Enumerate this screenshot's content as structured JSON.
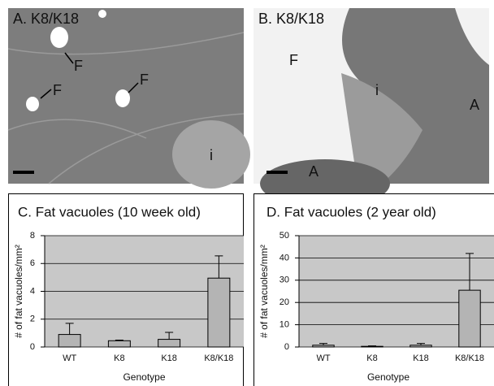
{
  "panels": [
    {
      "title": "A. K8/K18",
      "labels": [
        "F",
        "F",
        "F",
        "i"
      ]
    },
    {
      "title": "B. K8/K18",
      "labels": [
        "F",
        "i",
        "A",
        "A"
      ]
    }
  ],
  "chart_data": [
    {
      "type": "bar",
      "title": "C. Fat vacuoles (10 week old)",
      "xlabel": "Genotype",
      "ylabel": "# of fat vacuoles/mm²",
      "categories": [
        "WT",
        "K8",
        "K18",
        "K8/K18"
      ],
      "values": [
        0.9,
        0.45,
        0.55,
        4.95
      ],
      "errors": [
        0.8,
        0.05,
        0.5,
        1.6
      ],
      "color": "#b4b4b4",
      "ylim": [
        0,
        8
      ],
      "yticks": [
        0,
        2,
        4,
        6,
        8
      ],
      "grid": true
    },
    {
      "type": "bar",
      "title": "D. Fat vacuoles (2 year old)",
      "xlabel": "Genotype",
      "ylabel": "# of fat vacuoles/mm²",
      "categories": [
        "WT",
        "K8",
        "K18",
        "K8/K18"
      ],
      "values": [
        0.8,
        0.3,
        0.8,
        25.5
      ],
      "errors": [
        0.8,
        0.2,
        0.8,
        16.5
      ],
      "color": "#b4b4b4",
      "ylim": [
        0,
        50
      ],
      "yticks": [
        0,
        10,
        20,
        30,
        40,
        50
      ],
      "grid": true
    }
  ]
}
